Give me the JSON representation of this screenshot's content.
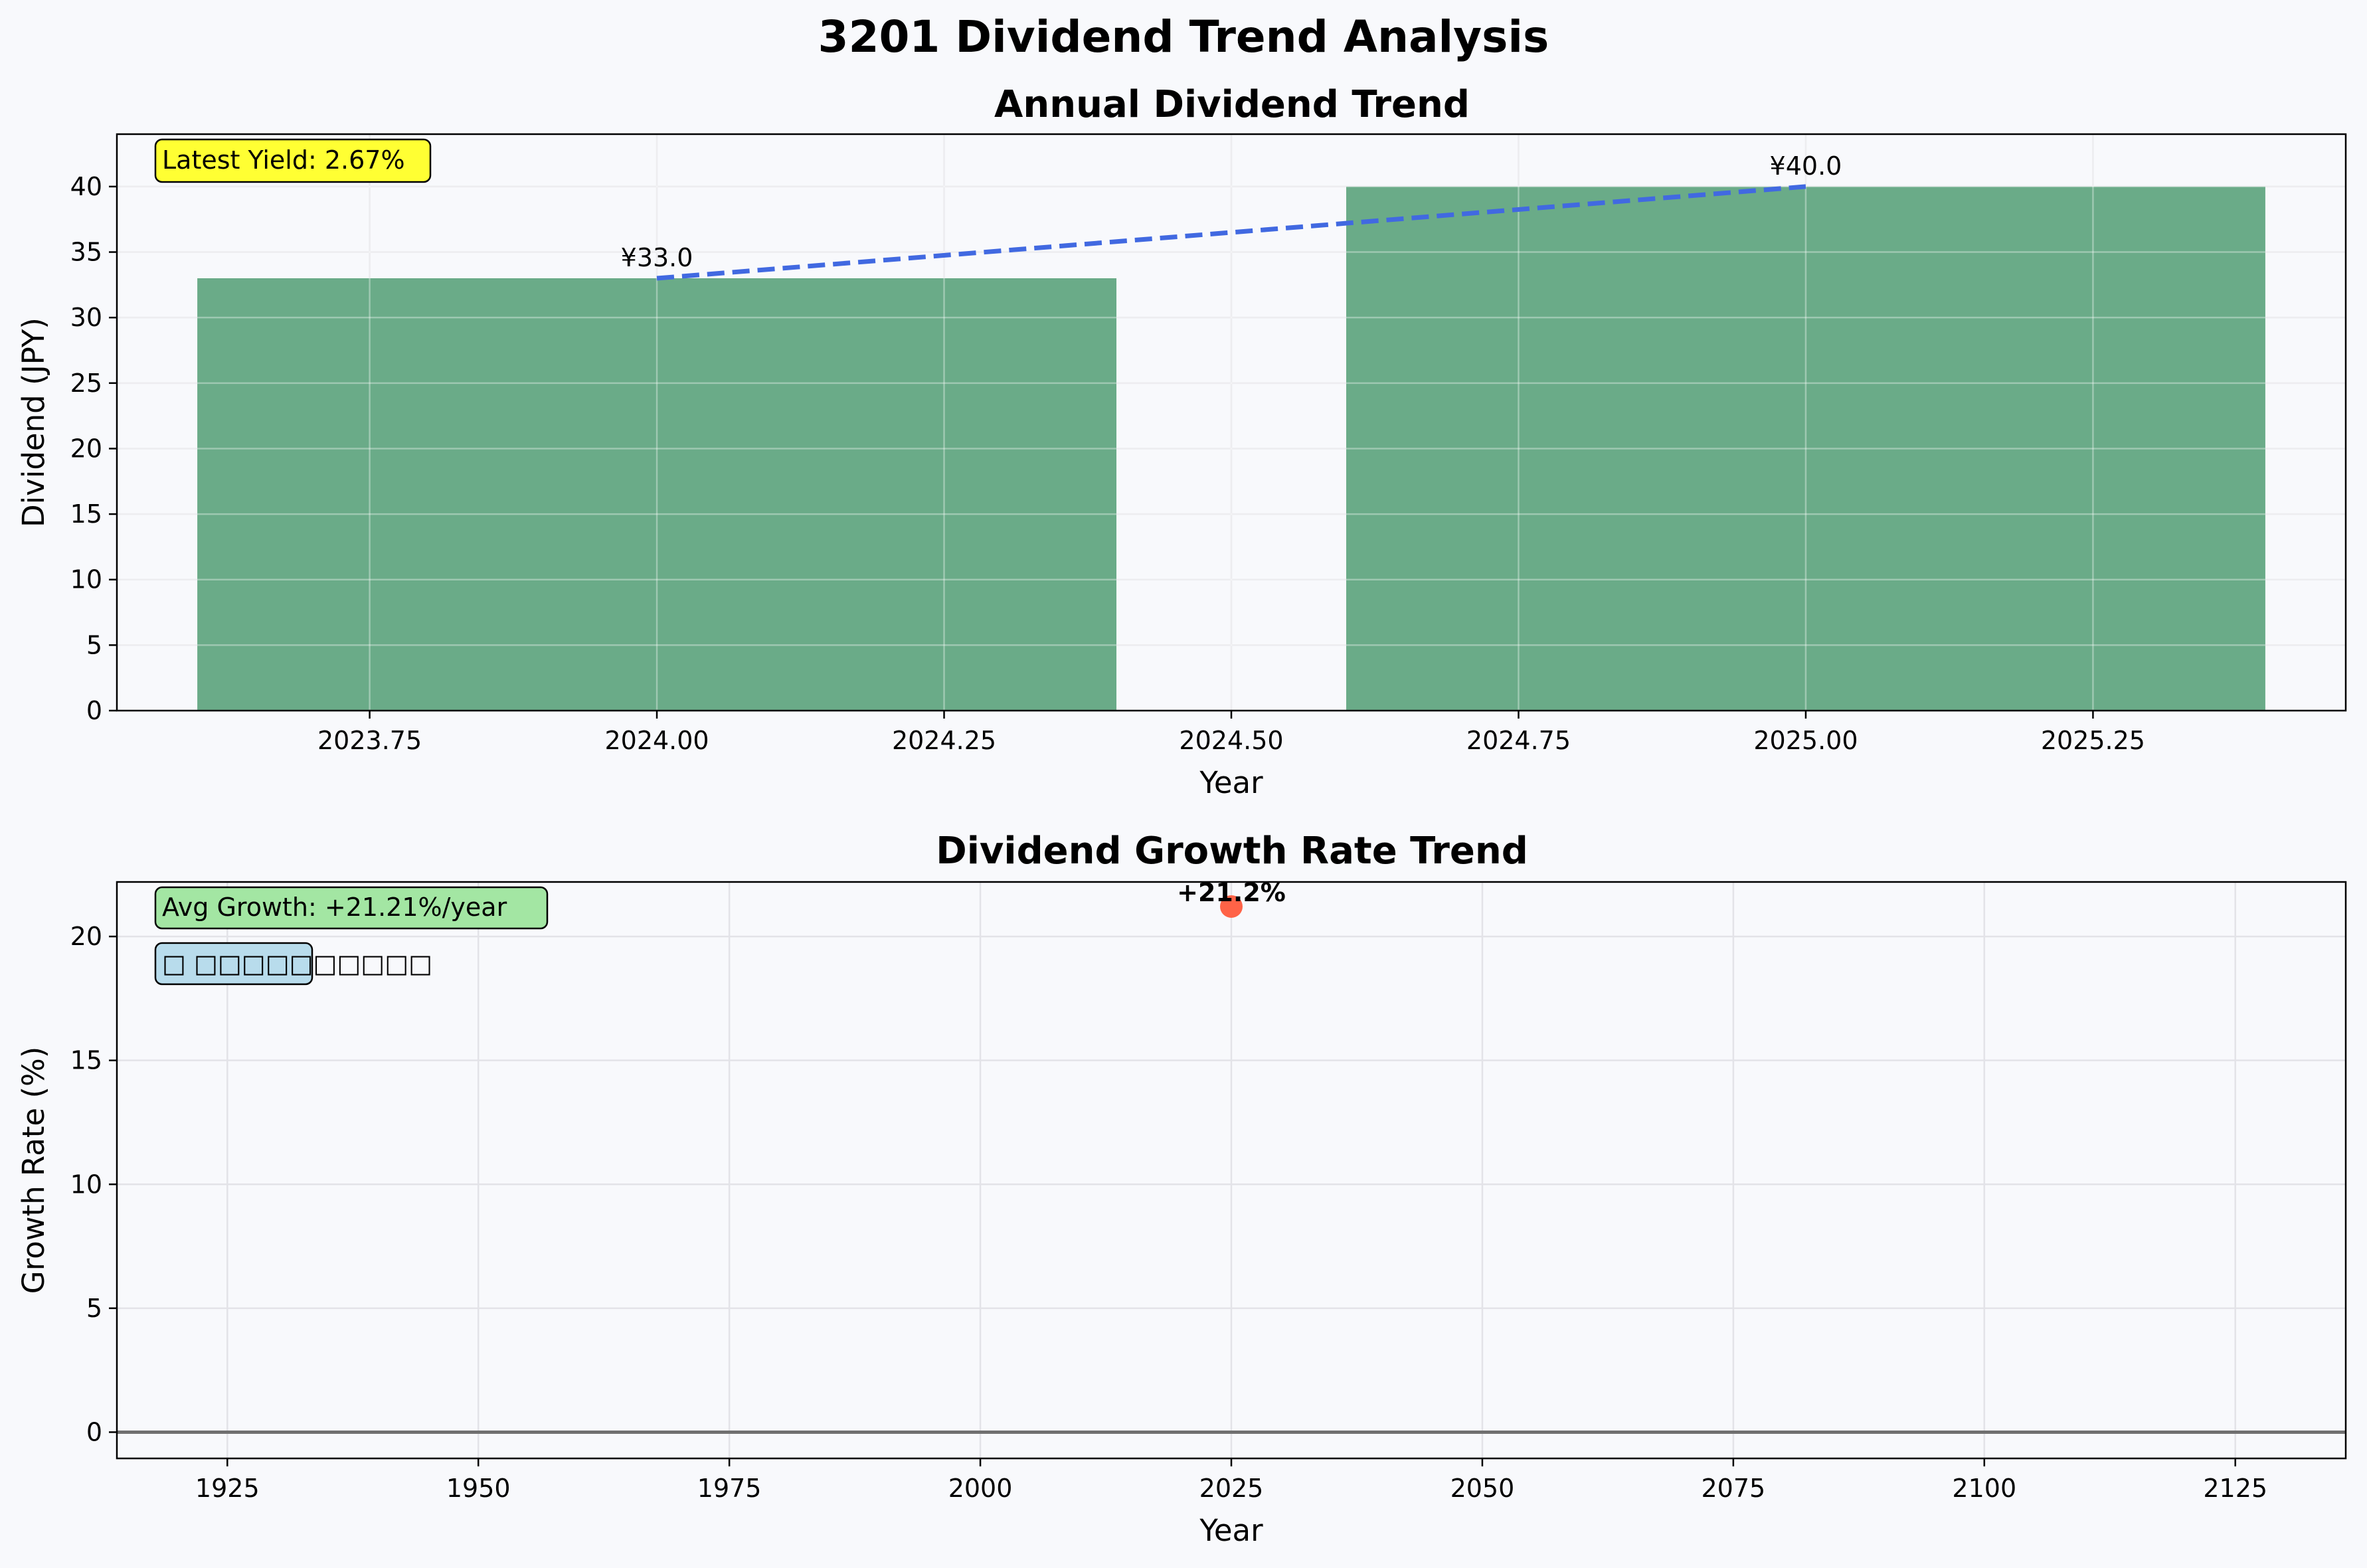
{
  "figure": {
    "title": "3201 Dividend Trend Analysis",
    "background": "#f8f9fc"
  },
  "chart_data": [
    {
      "type": "bar",
      "title": "Annual Dividend Trend",
      "xlabel": "Year",
      "ylabel": "Dividend (JPY)",
      "x": [
        2024,
        2025
      ],
      "values": [
        33.0,
        40.0
      ],
      "bar_width": 0.8,
      "data_labels": [
        "¥33.0",
        "¥40.0"
      ],
      "trend_line": {
        "x": [
          2024,
          2025
        ],
        "y": [
          33.0,
          40.0
        ],
        "style": "dashed",
        "color": "#4169e1"
      },
      "xlim": [
        2023.53,
        2025.47
      ],
      "ylim": [
        0,
        44
      ],
      "xticks": [
        2023.75,
        2024.0,
        2024.25,
        2024.5,
        2024.75,
        2025.0,
        2025.25
      ],
      "xtick_labels": [
        "2023.75",
        "2024.00",
        "2024.25",
        "2024.50",
        "2024.75",
        "2025.00",
        "2025.25"
      ],
      "yticks": [
        0,
        5,
        10,
        15,
        20,
        25,
        30,
        35,
        40
      ],
      "yticks_labels": [
        "0",
        "5",
        "10",
        "15",
        "20",
        "25",
        "30",
        "35",
        "40"
      ],
      "bar_color": "#6aab88",
      "grid": true,
      "annotation": {
        "text": "Latest Yield: 2.67%",
        "box_color": "#ffff33",
        "position": "top-left"
      }
    },
    {
      "type": "scatter",
      "title": "Dividend Growth Rate Trend",
      "xlabel": "Year",
      "ylabel": "Growth Rate (%)",
      "x": [
        2025
      ],
      "values": [
        21.21
      ],
      "data_labels": [
        "+21.2%"
      ],
      "point_color": "#ff6347",
      "reference_line_y": 0,
      "xlim": [
        1914,
        2136
      ],
      "ylim": [
        -1.06,
        22.2
      ],
      "xticks": [
        1925,
        1950,
        1975,
        2000,
        2025,
        2050,
        2075,
        2100,
        2125
      ],
      "xtick_labels": [
        "1925",
        "1950",
        "1975",
        "2000",
        "2025",
        "2050",
        "2075",
        "2100",
        "2125"
      ],
      "yticks": [
        0,
        5,
        10,
        15,
        20
      ],
      "yticks_labels": [
        "0",
        "5",
        "10",
        "15",
        "20"
      ],
      "grid": true,
      "annotations": [
        {
          "text": "Avg Growth: +21.21%/year",
          "box_color": "#a3e6a3",
          "position": "top-left"
        },
        {
          "text": "□ □□□□□□□□□□",
          "box_color": "#b8dcec",
          "position": "top-left"
        }
      ]
    }
  ]
}
